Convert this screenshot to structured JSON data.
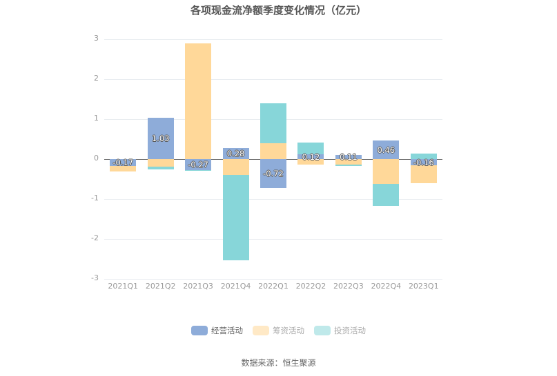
{
  "title": "各项现金流净额季度变化情况（亿元）",
  "source": "数据来源：恒生聚源",
  "colors": {
    "operating": "#8eacd9",
    "financing": "#ffd899",
    "investing": "#87d6d9",
    "legend_financing_dim": "#ffe9c6",
    "legend_investing_dim": "#bfe9ea"
  },
  "legend": [
    {
      "label": "经营活动",
      "key": "operating",
      "active": true
    },
    {
      "label": "筹资活动",
      "key": "financing",
      "active": false
    },
    {
      "label": "投资活动",
      "key": "investing",
      "active": false
    }
  ],
  "chart_data": {
    "type": "bar",
    "stacked": true,
    "title": "各项现金流净额季度变化情况（亿元）",
    "xlabel": "",
    "ylabel": "",
    "ylim": [
      -3,
      3
    ],
    "yticks": [
      3,
      2,
      1,
      0,
      -1,
      -2,
      -3
    ],
    "grid": true,
    "legend_position": "bottom",
    "categories": [
      "2021Q1",
      "2021Q2",
      "2021Q3",
      "2021Q4",
      "2022Q1",
      "2022Q2",
      "2022Q3",
      "2022Q4",
      "2023Q1"
    ],
    "series": [
      {
        "name": "经营活动",
        "values": [
          -0.17,
          1.03,
          -0.27,
          0.28,
          -0.72,
          0.12,
          0.11,
          0.46,
          -0.16
        ],
        "labeled": true
      },
      {
        "name": "筹资活动",
        "values": [
          -0.14,
          -0.19,
          2.89,
          -0.39,
          0.4,
          -0.13,
          -0.13,
          -0.62,
          -0.44
        ]
      },
      {
        "name": "投资活动",
        "values": [
          0.0,
          -0.07,
          -0.02,
          -2.15,
          1.0,
          0.3,
          -0.04,
          -0.55,
          0.13
        ]
      }
    ],
    "data_labels": [
      "-0.17",
      "1.03",
      "-0.27",
      "0.28",
      "-0.72",
      "0.12",
      "0.11",
      "0.46",
      "-0.16"
    ]
  }
}
